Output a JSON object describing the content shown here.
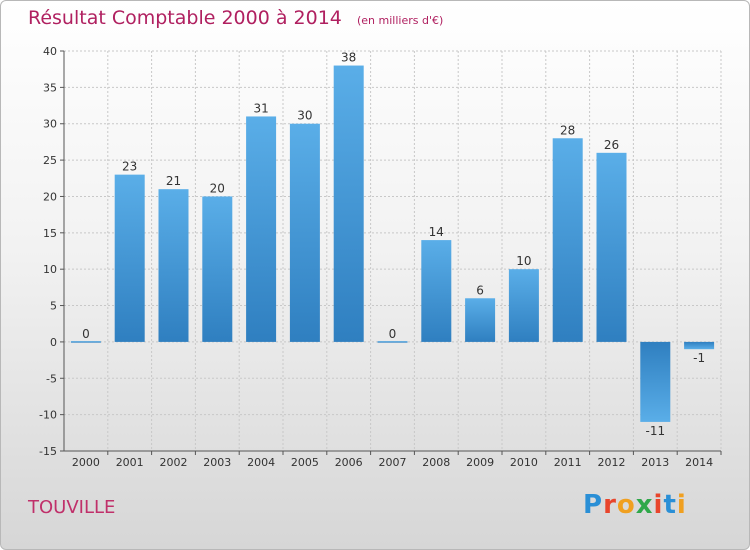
{
  "title": "Résultat Comptable 2000 à 2014",
  "subtitle": "(en milliers d'€)",
  "location": "TOUVILLE",
  "logo": {
    "text": "Proxiti",
    "letter_colors": [
      "#2a8fd6",
      "#e8452c",
      "#f0a020",
      "#2fa84a",
      "#e8452c",
      "#2a8fd6",
      "#f0a020"
    ]
  },
  "colors": {
    "title": "#b02060",
    "bar_light": "#5aaee8",
    "bar_dark": "#2f7fc0",
    "grid": "#c8c8c8",
    "axis_text": "#333333"
  },
  "chart_data": {
    "type": "bar",
    "title": "Résultat Comptable 2000 à 2014",
    "subtitle": "(en milliers d'€)",
    "xlabel": "",
    "ylabel": "",
    "categories": [
      "2000",
      "2001",
      "2002",
      "2003",
      "2004",
      "2005",
      "2006",
      "2007",
      "2008",
      "2009",
      "2010",
      "2011",
      "2012",
      "2013",
      "2014"
    ],
    "values": [
      0,
      23,
      21,
      20,
      31,
      30,
      38,
      0,
      14,
      6,
      10,
      28,
      26,
      -11,
      -1
    ],
    "ylim": [
      -15,
      40
    ],
    "yticks": [
      -15,
      -10,
      -5,
      0,
      5,
      10,
      15,
      20,
      25,
      30,
      35,
      40
    ],
    "grid": true,
    "legend": "none"
  }
}
